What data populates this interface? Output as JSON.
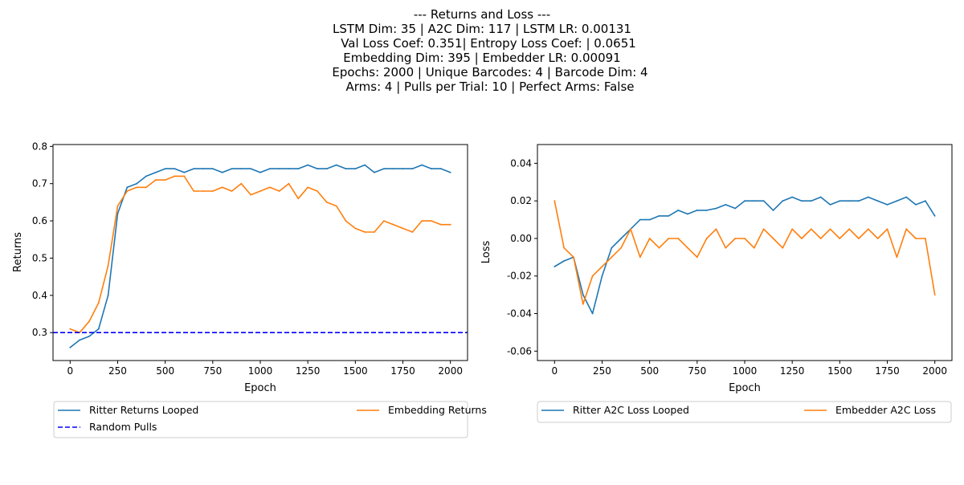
{
  "suptitle": [
    "--- Returns and Loss ---",
    "LSTM Dim: 35 | A2C Dim: 117 | LSTM LR: 0.00131",
    "Val Loss Coef: 0.351| Entropy Loss Coef: | 0.0651",
    "Embedding Dim: 395 | Embedder LR: 0.00091",
    "Epochs: 2000 | Unique Barcodes: 4 | Barcode Dim: 4",
    "Arms: 4 | Pulls per Trial: 10 | Perfect Arms: False"
  ],
  "colors": {
    "blue": "#1f77b4",
    "orange": "#ff7f0e",
    "random": "#0000ff"
  },
  "chart_data": [
    {
      "type": "line",
      "title": "",
      "xlabel": "Epoch",
      "ylabel": "Returns",
      "xlim": [
        -90,
        2090
      ],
      "ylim": [
        0.225,
        0.805
      ],
      "xticks": [
        0,
        250,
        500,
        750,
        1000,
        1250,
        1500,
        1750,
        2000
      ],
      "yticks": [
        0.3,
        0.4,
        0.5,
        0.6,
        0.7,
        0.8
      ],
      "ytick_decimals": 1,
      "grid": false,
      "legend": {
        "placement": "below",
        "columns": 2
      },
      "x": [
        0,
        50,
        100,
        150,
        200,
        250,
        300,
        350,
        400,
        450,
        500,
        550,
        600,
        650,
        700,
        750,
        800,
        850,
        900,
        950,
        1000,
        1050,
        1100,
        1150,
        1200,
        1250,
        1300,
        1350,
        1400,
        1450,
        1500,
        1550,
        1600,
        1650,
        1700,
        1750,
        1800,
        1850,
        1900,
        1950,
        2000
      ],
      "series": [
        {
          "name": "Ritter Returns Looped",
          "color": "#1f77b4",
          "style": "solid",
          "values": [
            0.26,
            0.28,
            0.29,
            0.31,
            0.4,
            0.62,
            0.69,
            0.7,
            0.72,
            0.73,
            0.74,
            0.74,
            0.73,
            0.74,
            0.74,
            0.74,
            0.73,
            0.74,
            0.74,
            0.74,
            0.73,
            0.74,
            0.74,
            0.74,
            0.74,
            0.75,
            0.74,
            0.74,
            0.75,
            0.74,
            0.74,
            0.75,
            0.73,
            0.74,
            0.74,
            0.74,
            0.74,
            0.75,
            0.74,
            0.74,
            0.73
          ]
        },
        {
          "name": "Embedding Returns",
          "color": "#ff7f0e",
          "style": "solid",
          "values": [
            0.31,
            0.3,
            0.33,
            0.38,
            0.48,
            0.64,
            0.68,
            0.69,
            0.69,
            0.71,
            0.71,
            0.72,
            0.72,
            0.68,
            0.68,
            0.68,
            0.69,
            0.68,
            0.7,
            0.67,
            0.68,
            0.69,
            0.68,
            0.7,
            0.66,
            0.69,
            0.68,
            0.65,
            0.64,
            0.6,
            0.58,
            0.57,
            0.57,
            0.6,
            0.59,
            0.58,
            0.57,
            0.6,
            0.6,
            0.59,
            0.59
          ]
        },
        {
          "name": "Random Pulls",
          "color": "#0000ff",
          "style": "dashed",
          "constant": 0.3
        }
      ]
    },
    {
      "type": "line",
      "title": "",
      "xlabel": "Epoch",
      "ylabel": "Loss",
      "xlim": [
        -90,
        2090
      ],
      "ylim": [
        -0.065,
        0.05
      ],
      "xticks": [
        0,
        250,
        500,
        750,
        1000,
        1250,
        1500,
        1750,
        2000
      ],
      "yticks": [
        -0.06,
        -0.04,
        -0.02,
        0.0,
        0.02,
        0.04
      ],
      "ytick_decimals": 2,
      "grid": false,
      "legend": {
        "placement": "below",
        "columns": 2
      },
      "x": [
        0,
        50,
        100,
        150,
        200,
        250,
        300,
        350,
        400,
        450,
        500,
        550,
        600,
        650,
        700,
        750,
        800,
        850,
        900,
        950,
        1000,
        1050,
        1100,
        1150,
        1200,
        1250,
        1300,
        1350,
        1400,
        1450,
        1500,
        1550,
        1600,
        1650,
        1700,
        1750,
        1800,
        1850,
        1900,
        1950,
        2000
      ],
      "series": [
        {
          "name": "Ritter A2C Loss Looped",
          "color": "#1f77b4",
          "style": "solid",
          "values": [
            -0.015,
            -0.012,
            -0.01,
            -0.03,
            -0.04,
            -0.02,
            -0.005,
            0.0,
            0.005,
            0.01,
            0.01,
            0.012,
            0.012,
            0.015,
            0.013,
            0.015,
            0.015,
            0.016,
            0.018,
            0.016,
            0.02,
            0.02,
            0.02,
            0.015,
            0.02,
            0.022,
            0.02,
            0.02,
            0.022,
            0.018,
            0.02,
            0.02,
            0.02,
            0.022,
            0.02,
            0.018,
            0.02,
            0.022,
            0.018,
            0.02,
            0.012
          ]
        },
        {
          "name": "Embedder A2C Loss",
          "color": "#ff7f0e",
          "style": "solid",
          "values": [
            0.02,
            -0.005,
            -0.01,
            -0.035,
            -0.02,
            -0.015,
            -0.01,
            -0.005,
            0.005,
            -0.01,
            0.0,
            -0.005,
            0.0,
            0.0,
            -0.005,
            -0.01,
            0.0,
            0.005,
            -0.005,
            0.0,
            0.0,
            -0.005,
            0.005,
            0.0,
            -0.005,
            0.005,
            0.0,
            0.005,
            0.0,
            0.005,
            0.0,
            0.005,
            0.0,
            0.005,
            0.0,
            0.005,
            -0.01,
            0.005,
            0.0,
            0.0,
            -0.03
          ]
        }
      ]
    }
  ]
}
